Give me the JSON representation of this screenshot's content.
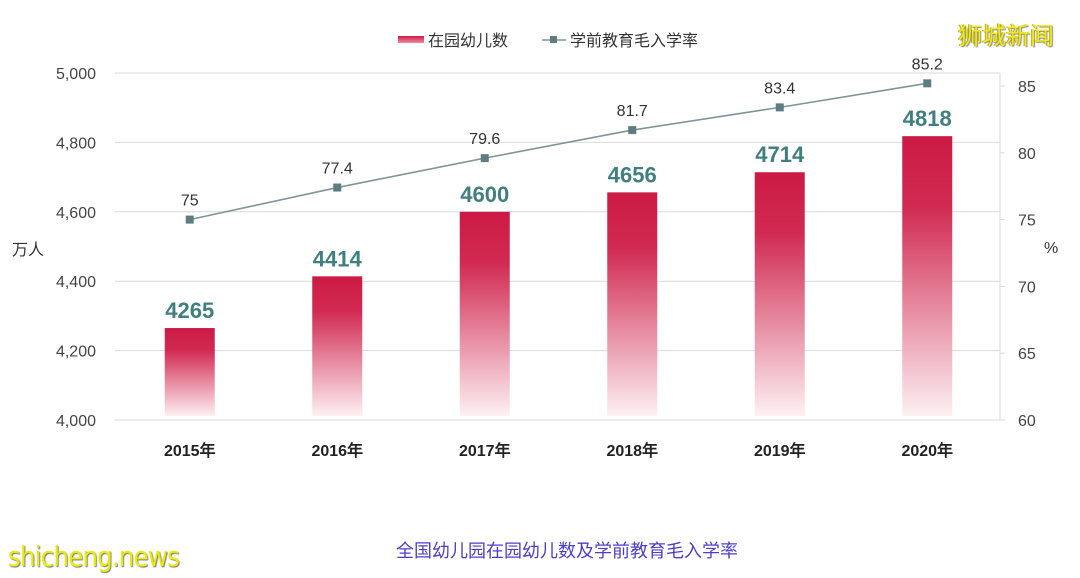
{
  "watermark": {
    "top_right": "狮城新闻",
    "bottom_left": "shicheng.news"
  },
  "caption": "全国幼儿园在园幼儿数及学前教育毛入学率",
  "legend": {
    "bar_label": "在园幼儿数",
    "line_label": "学前教育毛入学率"
  },
  "axes": {
    "left_unit": "万人",
    "right_unit": "%",
    "left_ticks": [
      "4,000",
      "4,200",
      "4,400",
      "4,600",
      "4,800",
      "5,000"
    ],
    "right_ticks": [
      "60",
      "65",
      "70",
      "75",
      "80",
      "85"
    ]
  },
  "colors": {
    "bar_top": "#cc1a44",
    "bar_bottom": "#fde8ed",
    "bar_label": "#3f7f80",
    "line": "#7f9496",
    "marker": "#5f7d80",
    "grid": "#d9d9d9",
    "tick_text": "#444444"
  },
  "chart_data": {
    "type": "bar+line",
    "title": "全国幼儿园在园幼儿数及学前教育毛入学率",
    "categories": [
      "2015年",
      "2016年",
      "2017年",
      "2018年",
      "2019年",
      "2020年"
    ],
    "series": [
      {
        "name": "在园幼儿数",
        "type": "bar",
        "axis": "left",
        "unit": "万人",
        "values": [
          4265,
          4414,
          4600,
          4656,
          4714,
          4818
        ]
      },
      {
        "name": "学前教育毛入学率",
        "type": "line",
        "axis": "right",
        "unit": "%",
        "values": [
          75,
          77.4,
          79.6,
          81.7,
          83.4,
          85.2
        ]
      }
    ],
    "ylabel": "万人",
    "ylabel_right": "%",
    "ylim": [
      4000,
      5000
    ],
    "ylim_right": [
      60,
      86
    ],
    "yticks": [
      4000,
      4200,
      4400,
      4600,
      4800,
      5000
    ],
    "yticks_right": [
      60,
      65,
      70,
      75,
      80,
      85
    ],
    "grid": true,
    "legend_position": "top-center"
  }
}
